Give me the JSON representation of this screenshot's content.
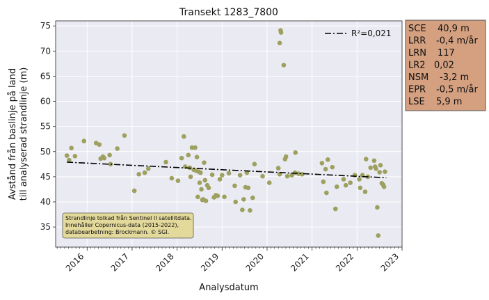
{
  "chart_data": {
    "type": "scatter",
    "title": "Transekt 1283_7800",
    "xlabel": "Analysdatum",
    "ylabel_lines": [
      "Avstånd från baslinje på land",
      "till analyserad strandlinje (m)"
    ],
    "xlim": [
      2015.3,
      2023.0
    ],
    "ylim": [
      31,
      76
    ],
    "grid": true,
    "y_ticks": [
      35,
      40,
      45,
      50,
      55,
      60,
      65,
      70,
      75
    ],
    "x_ticks": [
      2016,
      2017,
      2018,
      2019,
      2020,
      2021,
      2022,
      2023
    ],
    "x_tick_labels": [
      "2016",
      "2017",
      "2018",
      "2019",
      "2020",
      "2021",
      "2022",
      "2023"
    ],
    "point_color": "#9da05e",
    "trend": {
      "label": "R²=0,021",
      "x": [
        2015.55,
        2022.65
      ],
      "y": [
        47.9,
        44.8
      ],
      "color": "#000000",
      "style": "dashdot"
    },
    "legend_position": "top-right",
    "points": [
      [
        2015.55,
        49.2
      ],
      [
        2015.6,
        48.3
      ],
      [
        2015.65,
        50.7
      ],
      [
        2015.73,
        49.1
      ],
      [
        2015.93,
        52.1
      ],
      [
        2016.2,
        51.7
      ],
      [
        2016.27,
        51.4
      ],
      [
        2016.3,
        48.6
      ],
      [
        2016.35,
        49.0
      ],
      [
        2016.38,
        48.7
      ],
      [
        2016.5,
        49.3
      ],
      [
        2016.52,
        47.5
      ],
      [
        2016.67,
        50.6
      ],
      [
        2016.83,
        53.2
      ],
      [
        2017.05,
        42.2
      ],
      [
        2017.15,
        45.5
      ],
      [
        2017.28,
        45.8
      ],
      [
        2017.36,
        46.6
      ],
      [
        2017.75,
        47.9
      ],
      [
        2017.88,
        44.7
      ],
      [
        2018.02,
        44.2
      ],
      [
        2018.1,
        48.7
      ],
      [
        2018.15,
        53.0
      ],
      [
        2018.18,
        47.0
      ],
      [
        2018.25,
        49.3
      ],
      [
        2018.28,
        46.8
      ],
      [
        2018.3,
        45.0
      ],
      [
        2018.33,
        50.8
      ],
      [
        2018.37,
        46.4
      ],
      [
        2018.4,
        50.8
      ],
      [
        2018.42,
        46.2
      ],
      [
        2018.44,
        48.9
      ],
      [
        2018.46,
        41.0
      ],
      [
        2018.48,
        46.0
      ],
      [
        2018.5,
        43.8
      ],
      [
        2018.52,
        45.8
      ],
      [
        2018.54,
        42.5
      ],
      [
        2018.56,
        40.4
      ],
      [
        2018.58,
        40.5
      ],
      [
        2018.6,
        47.8
      ],
      [
        2018.62,
        44.3
      ],
      [
        2018.64,
        40.2
      ],
      [
        2018.67,
        43.3
      ],
      [
        2018.7,
        42.8
      ],
      [
        2018.78,
        45.4
      ],
      [
        2018.82,
        40.9
      ],
      [
        2018.86,
        41.3
      ],
      [
        2018.9,
        41.2
      ],
      [
        2018.95,
        44.5
      ],
      [
        2019.0,
        45.3
      ],
      [
        2019.05,
        41.0
      ],
      [
        2019.15,
        45.7
      ],
      [
        2019.28,
        43.2
      ],
      [
        2019.3,
        40.0
      ],
      [
        2019.4,
        45.3
      ],
      [
        2019.45,
        38.4
      ],
      [
        2019.48,
        40.5
      ],
      [
        2019.52,
        42.9
      ],
      [
        2019.55,
        45.8
      ],
      [
        2019.58,
        42.8
      ],
      [
        2019.62,
        38.3
      ],
      [
        2019.68,
        40.8
      ],
      [
        2019.72,
        47.5
      ],
      [
        2019.9,
        45.1
      ],
      [
        2020.05,
        43.8
      ],
      [
        2020.25,
        46.7
      ],
      [
        2020.28,
        45.5
      ],
      [
        2020.28,
        71.6
      ],
      [
        2020.3,
        74.1
      ],
      [
        2020.31,
        73.7
      ],
      [
        2020.37,
        67.2
      ],
      [
        2020.4,
        48.5
      ],
      [
        2020.42,
        49.0
      ],
      [
        2020.45,
        45.1
      ],
      [
        2020.55,
        45.3
      ],
      [
        2020.62,
        45.8
      ],
      [
        2020.63,
        49.8
      ],
      [
        2020.7,
        45.6
      ],
      [
        2020.78,
        45.5
      ],
      [
        2021.22,
        47.7
      ],
      [
        2021.25,
        44.0
      ],
      [
        2021.3,
        46.5
      ],
      [
        2021.32,
        41.8
      ],
      [
        2021.35,
        48.4
      ],
      [
        2021.45,
        46.9
      ],
      [
        2021.52,
        38.6
      ],
      [
        2021.55,
        43.0
      ],
      [
        2021.7,
        44.5
      ],
      [
        2021.75,
        43.3
      ],
      [
        2021.85,
        43.8
      ],
      [
        2021.95,
        45.3
      ],
      [
        2022.05,
        44.5
      ],
      [
        2022.07,
        42.8
      ],
      [
        2022.12,
        45.3
      ],
      [
        2022.18,
        42.0
      ],
      [
        2022.2,
        48.5
      ],
      [
        2022.24,
        45.0
      ],
      [
        2022.3,
        46.8
      ],
      [
        2022.38,
        48.2
      ],
      [
        2022.4,
        47.0
      ],
      [
        2022.42,
        46.6
      ],
      [
        2022.45,
        38.9
      ],
      [
        2022.47,
        33.3
      ],
      [
        2022.5,
        45.9
      ],
      [
        2022.52,
        47.3
      ],
      [
        2022.55,
        43.7
      ],
      [
        2022.58,
        43.4
      ],
      [
        2022.6,
        43.0
      ],
      [
        2022.62,
        46.0
      ]
    ]
  },
  "stats": {
    "rows": [
      {
        "key": "SCE",
        "value": "40,9 m"
      },
      {
        "key": "LRR",
        "value": "-0,4 m/år"
      },
      {
        "key": "LRN",
        "value": "117"
      },
      {
        "key": "LR2",
        "value": "0,02"
      },
      {
        "key": "NSM",
        "value": "-3,2 m"
      },
      {
        "key": "EPR",
        "value": "-0,5 m/år"
      },
      {
        "key": "LSE",
        "value": "5,9 m"
      }
    ],
    "bg_color": "#d4a07f",
    "border_color": "#555555"
  },
  "note": {
    "lines": [
      "Strandlinje tolkad från Sentinel II satellitdata.",
      "Innehåller Copernicus-data (2015-2022),",
      "databearbetning: Brockmann. © SGI."
    ],
    "bg_color": "#e3d99b"
  },
  "colors": {
    "plot_bg": "#eaeaf2",
    "grid": "#ffffff"
  }
}
